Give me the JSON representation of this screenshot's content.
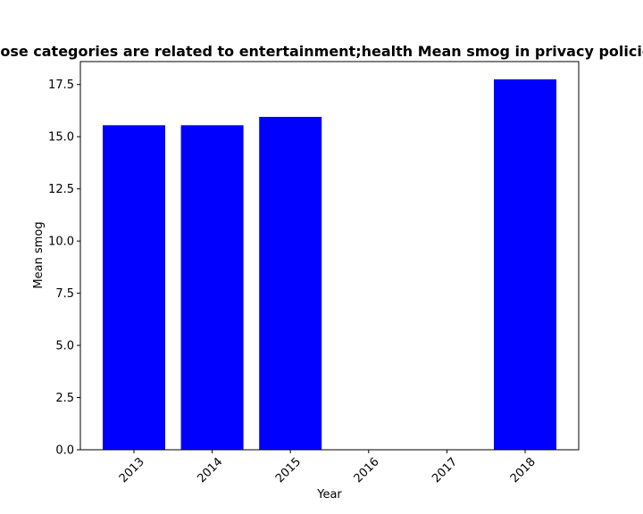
{
  "chart_data": {
    "type": "bar",
    "title": "Apps whose categories are related to entertainment;health Mean smog in privacy policies by year",
    "xlabel": "Year",
    "ylabel": "Mean smog",
    "categories": [
      "2013",
      "2014",
      "2015",
      "2016",
      "2017",
      "2018"
    ],
    "values": [
      15.55,
      15.55,
      15.95,
      0,
      0,
      17.75
    ],
    "ylim": [
      0,
      18.6
    ],
    "yticks": [
      "0.0",
      "2.5",
      "5.0",
      "7.5",
      "10.0",
      "12.5",
      "15.0",
      "17.5"
    ],
    "bar_color": "#0000ff",
    "grid": false,
    "legend": "none"
  }
}
